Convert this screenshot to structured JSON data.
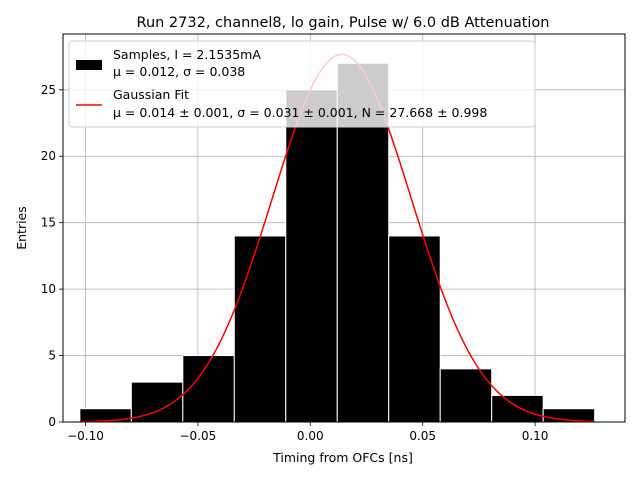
{
  "chart_data": {
    "type": "bar",
    "title": "Run 2732, channel8, lo gain, Pulse w/ 6.0 dB Attenuation",
    "xlabel": "Timing from OFCs [ns]",
    "ylabel": "Entries",
    "xlim": [
      -0.11,
      0.14
    ],
    "ylim": [
      0,
      29.2
    ],
    "xticks": [
      -0.1,
      -0.05,
      0.0,
      0.05,
      0.1
    ],
    "xtick_labels": [
      "−0.10",
      "−0.05",
      "0.00",
      "0.05",
      "0.10"
    ],
    "yticks": [
      0,
      5,
      10,
      15,
      20,
      25
    ],
    "ytick_labels": [
      "0",
      "5",
      "10",
      "15",
      "20",
      "25"
    ],
    "grid": true,
    "legend_position": "top-left",
    "histogram": {
      "name": "Samples, I = 2.1535mA",
      "stats_label": "μ = 0.012, σ = 0.038",
      "color": "#000000",
      "edge_color": "#ffffff",
      "bin_edges": [
        -0.1025,
        -0.0796,
        -0.0567,
        -0.0338,
        -0.0109,
        0.012,
        0.0349,
        0.0578,
        0.0807,
        0.1036,
        0.1265
      ],
      "counts": [
        1,
        3,
        5,
        14,
        25,
        27,
        14,
        4,
        2,
        1
      ]
    },
    "fit": {
      "name": "Gaussian Fit",
      "params_label": "μ = 0.014 ± 0.001, σ = 0.031 ± 0.001, N = 27.668 ± 0.998",
      "mu": 0.014,
      "sigma": 0.031,
      "N": 27.668,
      "x_range": [
        -0.1025,
        0.1265
      ],
      "color": "#ff0000"
    }
  }
}
